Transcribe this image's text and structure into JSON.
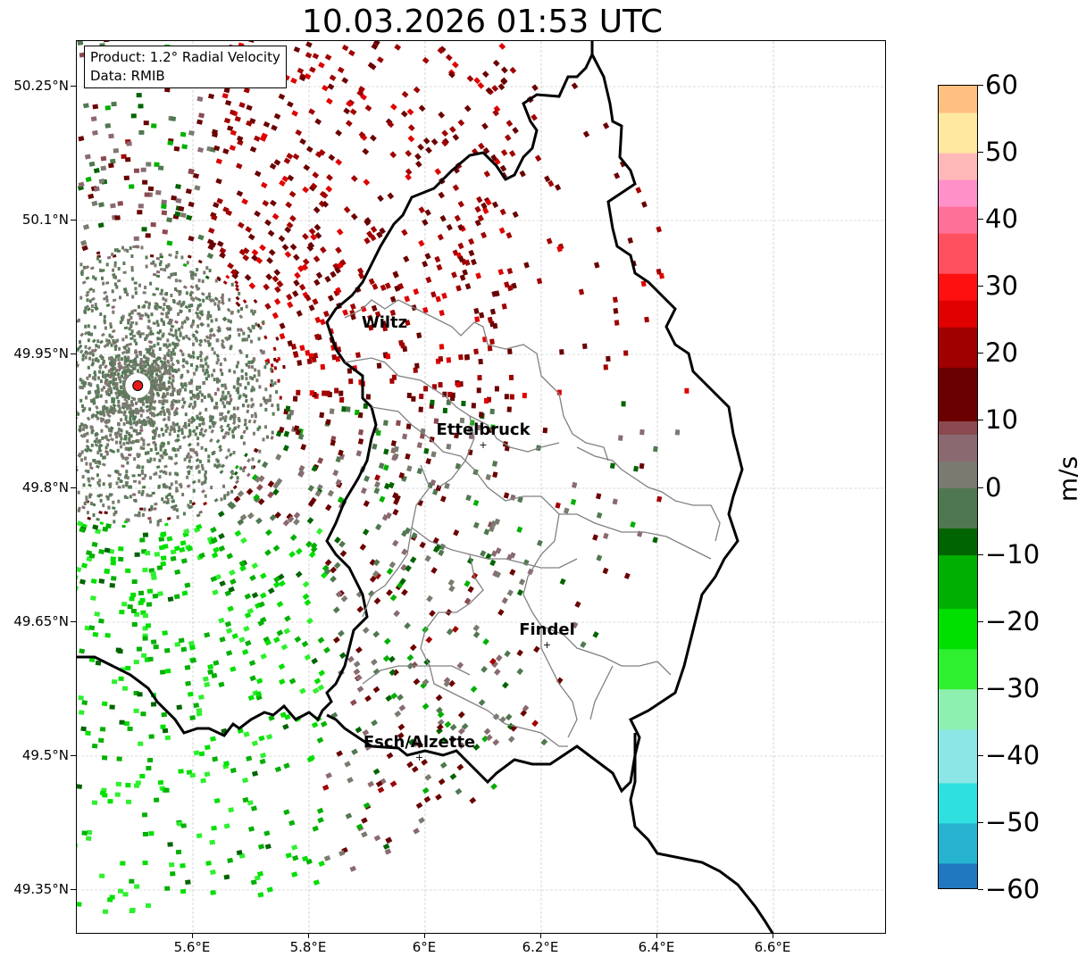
{
  "title": "10.03.2026 01:53 UTC",
  "info": {
    "product": "Product: 1.2° Radial Velocity",
    "data": "Data: RMIB"
  },
  "map": {
    "lon_range": [
      5.4,
      6.8
    ],
    "lat_range": [
      49.3,
      50.3
    ],
    "x_ticks": [
      {
        "value": 5.6,
        "label": "5.6°E"
      },
      {
        "value": 5.8,
        "label": "5.8°E"
      },
      {
        "value": 6.0,
        "label": "6°E"
      },
      {
        "value": 6.2,
        "label": "6.2°E"
      },
      {
        "value": 6.4,
        "label": "6.4°E"
      },
      {
        "value": 6.6,
        "label": "6.6°E"
      }
    ],
    "y_ticks": [
      {
        "value": 50.25,
        "label": "50.25°N"
      },
      {
        "value": 50.1,
        "label": "50.1°N"
      },
      {
        "value": 49.95,
        "label": "49.95°N"
      },
      {
        "value": 49.8,
        "label": "49.8°N"
      },
      {
        "value": 49.65,
        "label": "49.65°N"
      },
      {
        "value": 49.5,
        "label": "49.5°N"
      },
      {
        "value": 49.35,
        "label": "49.35°N"
      }
    ],
    "gridlines": true,
    "radar_site": {
      "lon": 5.505,
      "lat": 49.915,
      "color": "#e41a1c"
    },
    "cities": [
      {
        "name": "Wiltz",
        "lon": 5.93,
        "lat": 49.97,
        "marker": false
      },
      {
        "name": "Ettelbruck",
        "lon": 6.1,
        "lat": 49.85,
        "marker": true
      },
      {
        "name": "Findel",
        "lon": 6.21,
        "lat": 49.626,
        "marker": true
      },
      {
        "name": "Esch/Alzette",
        "lon": 5.99,
        "lat": 49.5,
        "marker": true
      }
    ]
  },
  "colorbar": {
    "unit": "m/s",
    "min": -60,
    "max": 60,
    "ticks": [
      {
        "value": 60,
        "label": "60"
      },
      {
        "value": 50,
        "label": "50"
      },
      {
        "value": 40,
        "label": "40"
      },
      {
        "value": 30,
        "label": "30"
      },
      {
        "value": 20,
        "label": "20"
      },
      {
        "value": 10,
        "label": "10"
      },
      {
        "value": 0,
        "label": "0"
      },
      {
        "value": -10,
        "label": "−10"
      },
      {
        "value": -20,
        "label": "−20"
      },
      {
        "value": -30,
        "label": "−30"
      },
      {
        "value": -40,
        "label": "−40"
      },
      {
        "value": -50,
        "label": "−50"
      },
      {
        "value": -60,
        "label": "−60"
      }
    ],
    "stops": [
      {
        "v": -60,
        "c": "#1f78c0"
      },
      {
        "v": -56,
        "c": "#26b3d0"
      },
      {
        "v": -50,
        "c": "#2fe0e0"
      },
      {
        "v": -44,
        "c": "#8de6e6"
      },
      {
        "v": -37,
        "c": "#c6f0f2"
      },
      {
        "v": -36,
        "c": "#8ef0b0"
      },
      {
        "v": -31,
        "c": "#2ef02e"
      },
      {
        "v": -25,
        "c": "#00e000"
      },
      {
        "v": -18,
        "c": "#00b000"
      },
      {
        "v": -10,
        "c": "#006400"
      },
      {
        "v": -6,
        "c": "#507850"
      },
      {
        "v": -1,
        "c": "#7a7a70"
      },
      {
        "v": 3,
        "c": "#8a6a70"
      },
      {
        "v": 8,
        "c": "#8a4a50"
      },
      {
        "v": 9,
        "c": "#6a0000"
      },
      {
        "v": 17,
        "c": "#a00000"
      },
      {
        "v": 24,
        "c": "#e00000"
      },
      {
        "v": 28,
        "c": "#ff1010"
      },
      {
        "v": 31,
        "c": "#ff5060"
      },
      {
        "v": 37,
        "c": "#ff7098"
      },
      {
        "v": 42,
        "c": "#ff90c8"
      },
      {
        "v": 46,
        "c": "#ffb8b8"
      },
      {
        "v": 50,
        "c": "#ffe8a0"
      },
      {
        "v": 55,
        "c": "#ffc080"
      },
      {
        "v": 60,
        "c": "#ff9850"
      }
    ]
  }
}
